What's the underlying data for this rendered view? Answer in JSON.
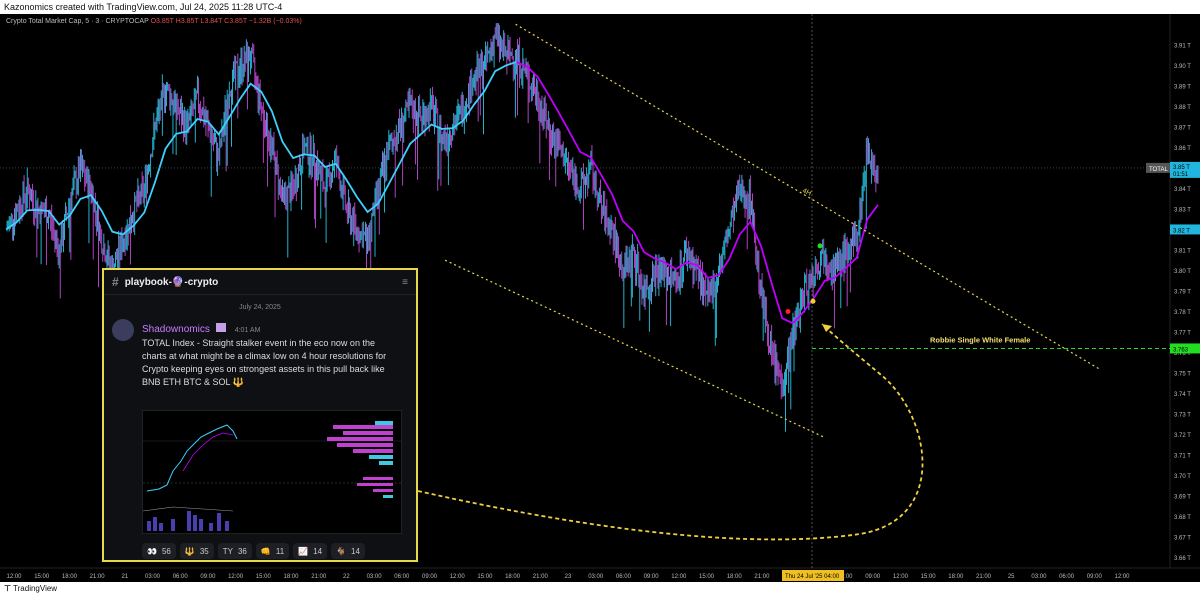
{
  "header": {
    "credit": "Kazonomics created with TradingView.com, Jul 24, 2025 11:28 UTC-4"
  },
  "legend": {
    "symbol": "Crypto Total Market Cap, 5 · 3 · CRYPTOCAP",
    "ohlc": "O3.85T H3.85T L3.84T C3.85T −1.32B (−0.03%)"
  },
  "footer": {
    "brand": "TradingView"
  },
  "colors": {
    "up": "#27c5e4",
    "down": "#c04bd6",
    "ema_early": "#3fd0ff",
    "ema_late": "#c000ff",
    "channel": "#e8d84a",
    "support": "#22dd22",
    "price_tag": "#21b6dd",
    "card_border": "#e8d84a"
  },
  "chart_data": {
    "type": "line",
    "title": "Crypto Total Market Cap, 5 · 3 · CRYPTOCAP",
    "ylabel": "",
    "xlabel": "",
    "ylim": [
      3.655,
      3.925
    ],
    "y_ticks": [
      "3.91 T",
      "3.90 T",
      "3.89 T",
      "3.88 T",
      "3.87 T",
      "3.86 T",
      "3.85 T",
      "3.84 T",
      "3.83 T",
      "3.82 T",
      "3.81 T",
      "3.80 T",
      "3.79 T",
      "3.78 T",
      "3.77 T",
      "3.76 T",
      "3.75 T",
      "3.74 T",
      "3.73 T",
      "3.72 T",
      "3.71 T",
      "3.70 T",
      "3.69 T",
      "3.68 T",
      "3.67 T",
      "3.66 T"
    ],
    "x_ticks": [
      "12:00",
      "15:00",
      "18:00",
      "21:00",
      "21",
      "03:00",
      "06:00",
      "09:00",
      "12:00",
      "15:00",
      "18:00",
      "21:00",
      "22",
      "03:00",
      "06:00",
      "09:00",
      "12:00",
      "15:00",
      "18:00",
      "21:00",
      "23",
      "03:00",
      "06:00",
      "09:00",
      "12:00",
      "15:00",
      "18:00",
      "21:00",
      "24",
      "Thu 24 Jul '25",
      "04:00",
      "09:00",
      "12:00",
      "15:00",
      "18:00",
      "21:00",
      "25",
      "03:00",
      "06:00",
      "09:00",
      "12:00"
    ],
    "series": [
      {
        "values": [
          3.82,
          3.83,
          3.84,
          3.83,
          3.828,
          3.81,
          3.835,
          3.85,
          3.84,
          3.815,
          3.8,
          3.815,
          3.83,
          3.84,
          3.87,
          3.89,
          3.88,
          3.87,
          3.885,
          3.87,
          3.855,
          3.89,
          3.9,
          3.905,
          3.88,
          3.86,
          3.835,
          3.84,
          3.86,
          3.855,
          3.84,
          3.855,
          3.83,
          3.82,
          3.815,
          3.84,
          3.86,
          3.87,
          3.88,
          3.875,
          3.88,
          3.865,
          3.87,
          3.88,
          3.895,
          3.9,
          3.915,
          3.905,
          3.905,
          3.895,
          3.885,
          3.87,
          3.86,
          3.85,
          3.84,
          3.85,
          3.83,
          3.82,
          3.8,
          3.81,
          3.79,
          3.8,
          3.8,
          3.795,
          3.81,
          3.8,
          3.785,
          3.8,
          3.82,
          3.84,
          3.835,
          3.79,
          3.76,
          3.745,
          3.77,
          3.79,
          3.8,
          3.81,
          3.8,
          3.81,
          3.815,
          3.86,
          3.845
        ]
      }
    ],
    "annotations": {
      "channel_upper": [
        [
          18.0,
          3.92
        ],
        [
          38.7,
          3.752
        ]
      ],
      "channel_lower": [
        [
          15.5,
          3.805
        ],
        [
          28.9,
          3.719
        ]
      ],
      "channel_label": "4H",
      "support_level": 3.762,
      "support_label": "Robbie Single White Female",
      "crosshair_x": 28.5,
      "crosshair_y": 3.85,
      "price_marker": "3.82 T",
      "support_marker": "3.763",
      "current_price": "3.85 T",
      "current_countdown": "01:51",
      "symbol_tag": "TOTAL",
      "crosshair_time": "Thu 24 Jul '25",
      "crosshair_time_sub": "04:00"
    }
  },
  "card": {
    "channel": "playbook-🔮-crypto",
    "date": "July 24, 2025",
    "author": "Shadownomics",
    "time": "4:01 AM",
    "message": "TOTAL Index - Straight stalker event in the eco now on the charts at what might be a climax low on 4 hour resolutions for Crypto keeping eyes on strongest assets in this pull back like BNB ETH BTC & SOL 🔱",
    "reactions": [
      {
        "icon": "👀",
        "count": "56"
      },
      {
        "icon": "🔱",
        "count": "35"
      },
      {
        "icon": "TY",
        "count": "36"
      },
      {
        "icon": "👊",
        "count": "11"
      },
      {
        "icon": "📈",
        "count": "14"
      },
      {
        "icon": "🐐",
        "count": "14"
      }
    ]
  }
}
